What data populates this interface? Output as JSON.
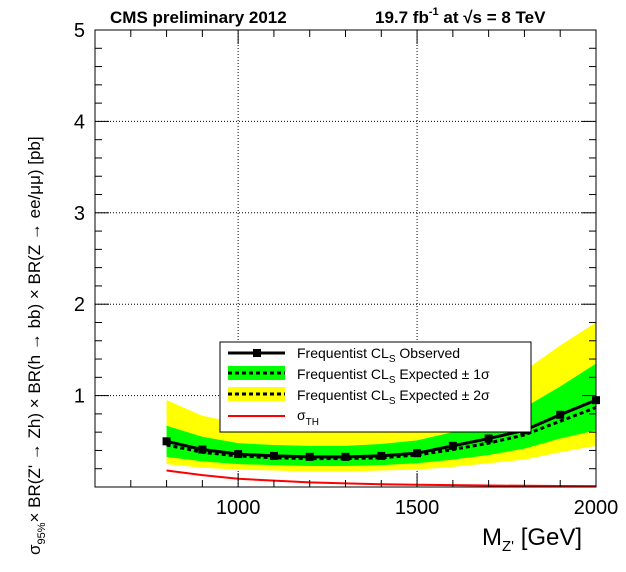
{
  "chart_data": {
    "type": "line",
    "header": {
      "left": "CMS preliminary 2012",
      "lumi_prefix": "19.7 fb",
      "lumi_exp": "-1",
      "lumi_at": " at ",
      "sqrt_sym": "√s",
      "energy": " = 8 TeV"
    },
    "xlabel": {
      "main": "M",
      "sub": "Z'",
      "unit": " [GeV]"
    },
    "ylabel": "× BR(Z' → Zh) × BR(h → bb) × BR(Z → ee/μμ) [pb]",
    "ylabel_sigma": "σ",
    "ylabel_sub": "95%",
    "xlim": [
      600,
      2000
    ],
    "ylim": [
      0,
      5
    ],
    "x_ticks": [
      1000,
      1500,
      2000
    ],
    "y_ticks": [
      1,
      2,
      3,
      4,
      5
    ],
    "grid": true,
    "legend_placement": "lower-center",
    "x": [
      800,
      900,
      1000,
      1100,
      1200,
      1300,
      1400,
      1500,
      1600,
      1700,
      1800,
      1900,
      2000
    ],
    "series": [
      {
        "name": "Frequentist CL Observed",
        "legend_main": "Frequentist CL",
        "legend_sub": "S",
        "legend_tail": " Observed",
        "values": [
          0.5,
          0.41,
          0.36,
          0.34,
          0.33,
          0.33,
          0.34,
          0.37,
          0.45,
          0.53,
          0.62,
          0.79,
          0.95
        ],
        "color": "#000000"
      },
      {
        "name": "Frequentist CL Expected ± 1σ",
        "legend_main": "Frequentist CL",
        "legend_sub": "S",
        "legend_tail": "  Expected ± 1σ",
        "values": [
          0.46,
          0.38,
          0.34,
          0.32,
          0.31,
          0.31,
          0.32,
          0.35,
          0.41,
          0.48,
          0.57,
          0.72,
          0.87
        ],
        "band_low": [
          0.33,
          0.28,
          0.25,
          0.24,
          0.23,
          0.23,
          0.24,
          0.26,
          0.3,
          0.35,
          0.42,
          0.53,
          0.62
        ],
        "band_high": [
          0.67,
          0.55,
          0.48,
          0.46,
          0.45,
          0.45,
          0.47,
          0.51,
          0.6,
          0.72,
          0.87,
          1.1,
          1.35
        ],
        "color": "#00ff00"
      },
      {
        "name": "Frequentist CL Expected ± 2σ",
        "legend_main": "Frequentist CL",
        "legend_sub": "S",
        "legend_tail": "  Expected ± 2σ",
        "band_low": [
          0.25,
          0.21,
          0.19,
          0.18,
          0.17,
          0.17,
          0.18,
          0.19,
          0.22,
          0.26,
          0.3,
          0.38,
          0.45
        ],
        "band_high": [
          0.95,
          0.78,
          0.7,
          0.67,
          0.66,
          0.66,
          0.69,
          0.74,
          0.88,
          1.05,
          1.27,
          1.55,
          1.8
        ],
        "color": "#ffff00"
      },
      {
        "name": "σTH",
        "legend_main": "σ",
        "legend_sub": "TH",
        "legend_tail": "",
        "values": [
          0.18,
          0.13,
          0.09,
          0.07,
          0.05,
          0.04,
          0.03,
          0.025,
          0.02,
          0.016,
          0.013,
          0.011,
          0.01
        ],
        "color": "#ff0000"
      }
    ]
  }
}
